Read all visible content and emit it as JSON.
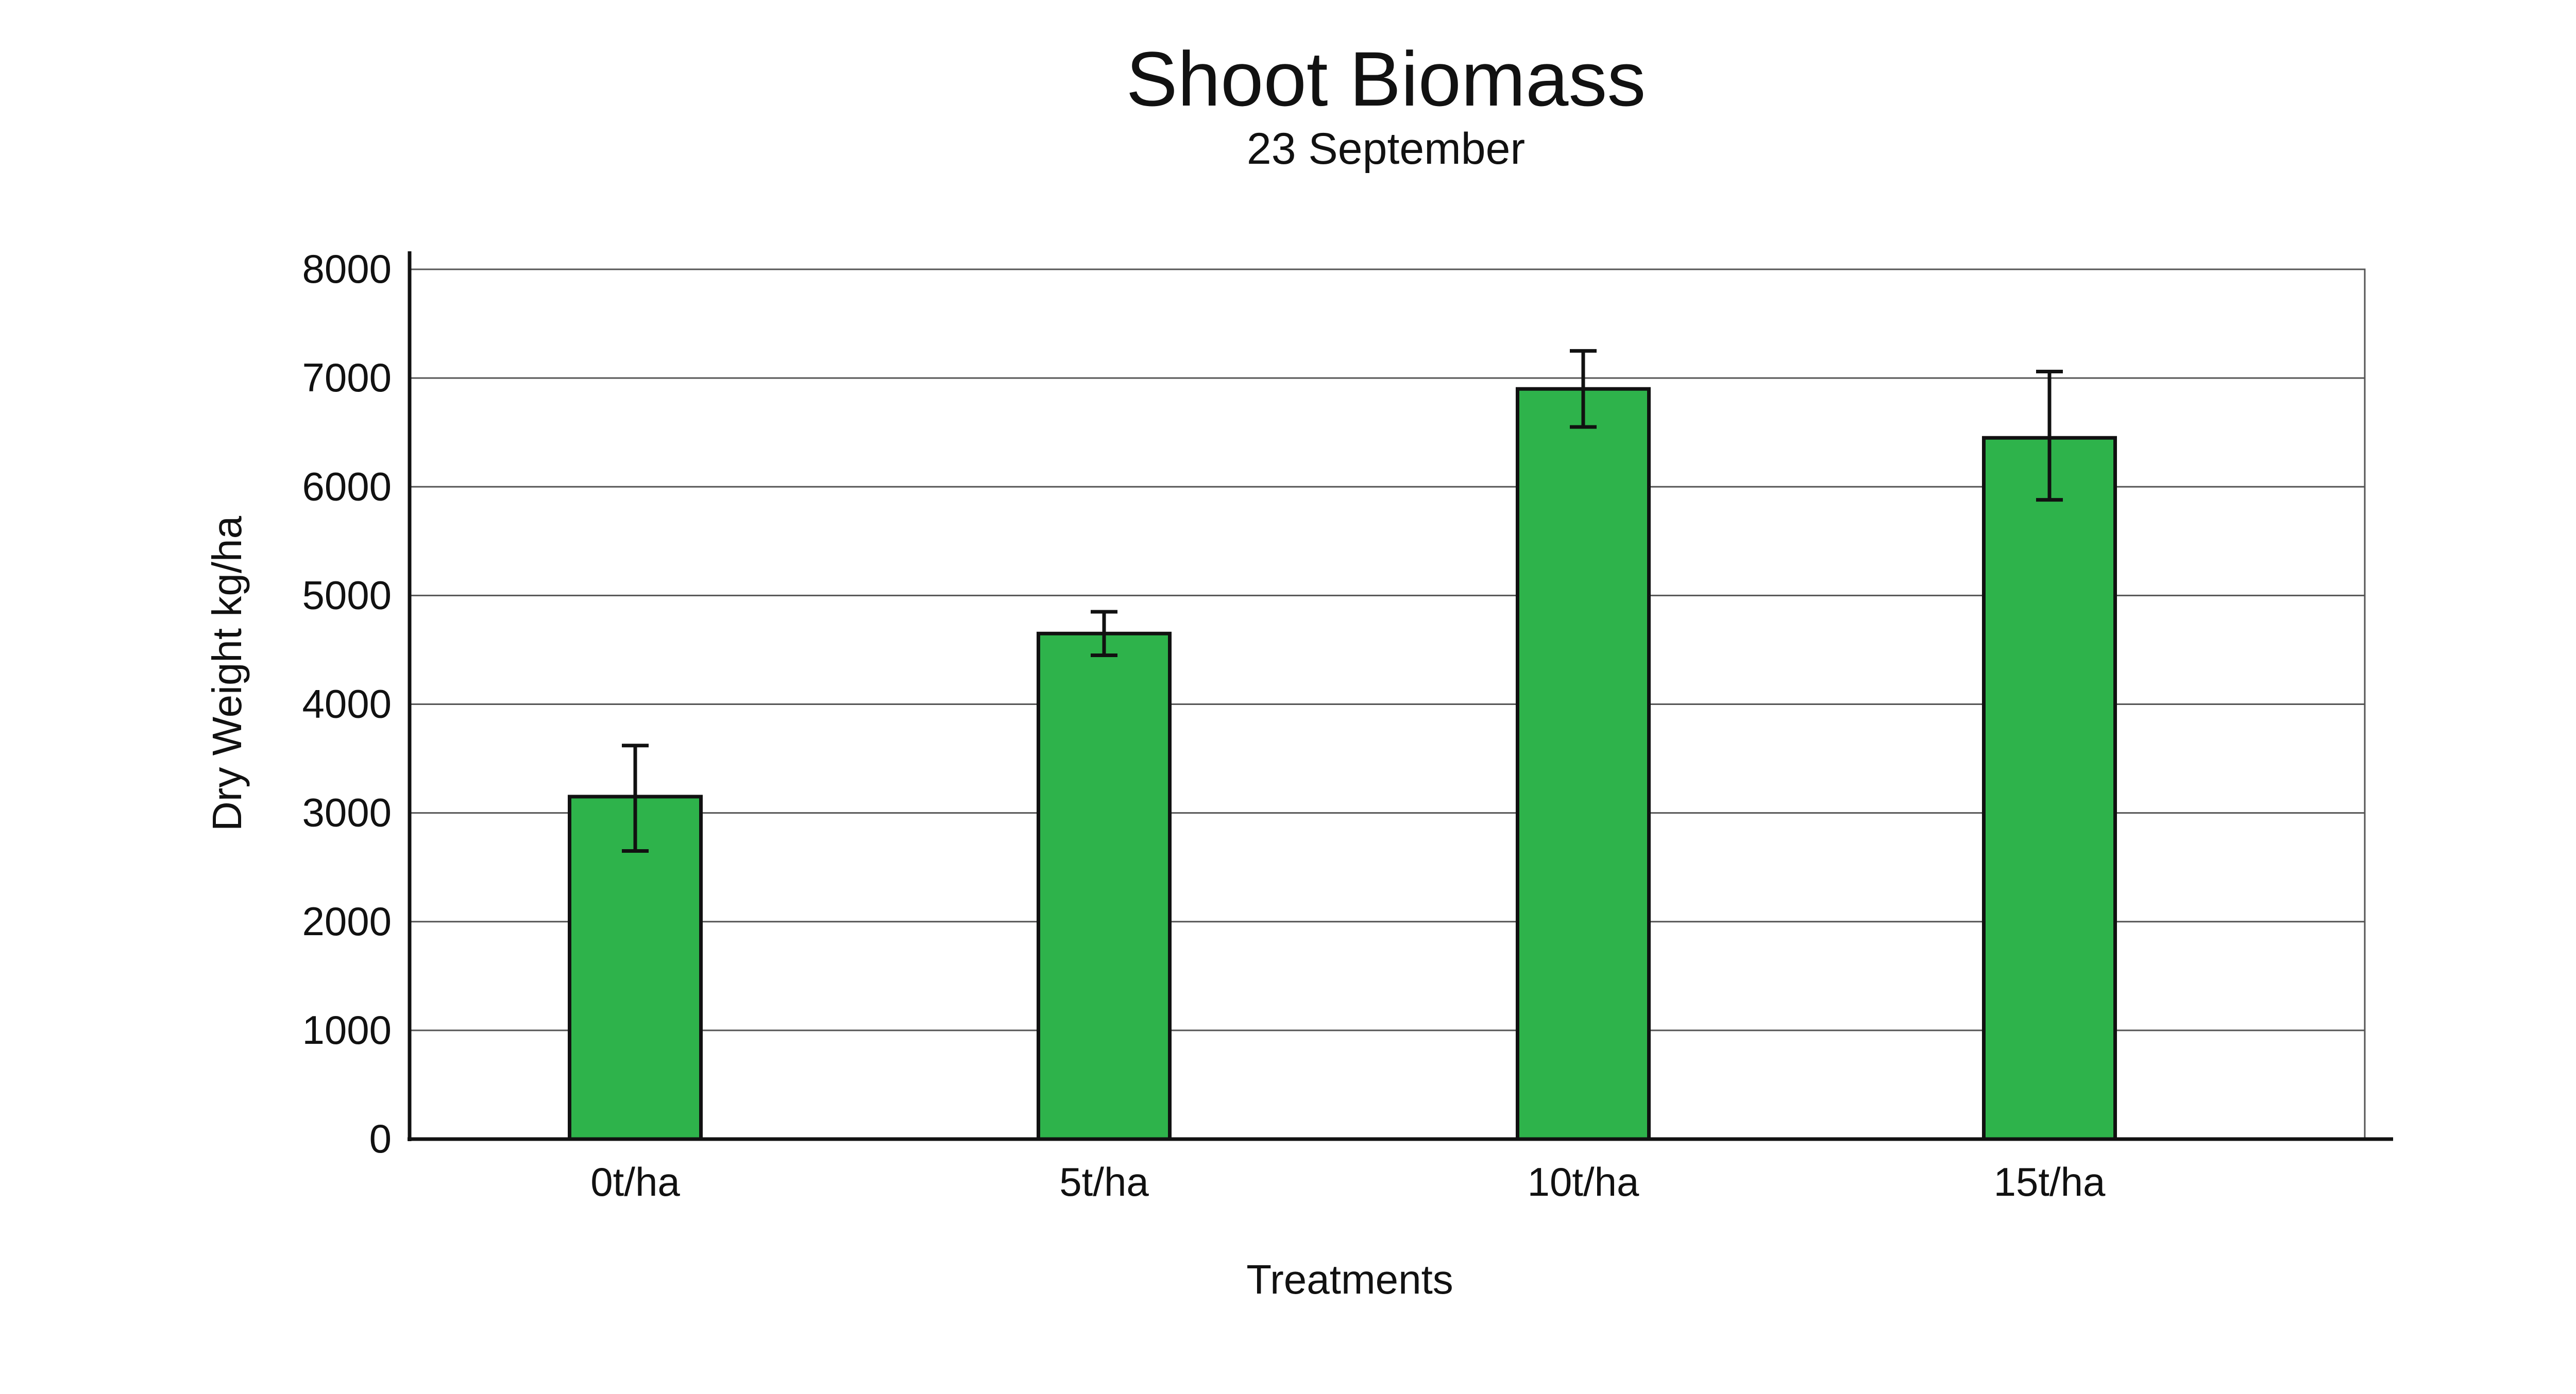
{
  "chart_data": {
    "type": "bar",
    "title": "Shoot Biomass",
    "subtitle": "23 September",
    "xlabel": "Treatments",
    "ylabel": "Dry Weight kg/ha",
    "categories": [
      "0t/ha",
      "5t/ha",
      "10t/ha",
      "15t/ha"
    ],
    "values": [
      3150,
      4650,
      6900,
      6450
    ],
    "error_low": [
      2650,
      4450,
      6550,
      5880
    ],
    "error_high": [
      3620,
      4850,
      7250,
      7060
    ],
    "ylim": [
      0,
      8000
    ],
    "yticks": [
      0,
      1000,
      2000,
      3000,
      4000,
      5000,
      6000,
      7000,
      8000
    ],
    "ytick_labels": [
      "0",
      "1000",
      "2000",
      "3000",
      "4000",
      "5000",
      "6000",
      "7000",
      "8000"
    ],
    "grid": true,
    "legend": "none",
    "colors": {
      "bar_fill": "#2eb34b",
      "bar_stroke": "#111111",
      "grid": "#555555",
      "axis": "#111111",
      "error_bar": "#111111"
    }
  }
}
